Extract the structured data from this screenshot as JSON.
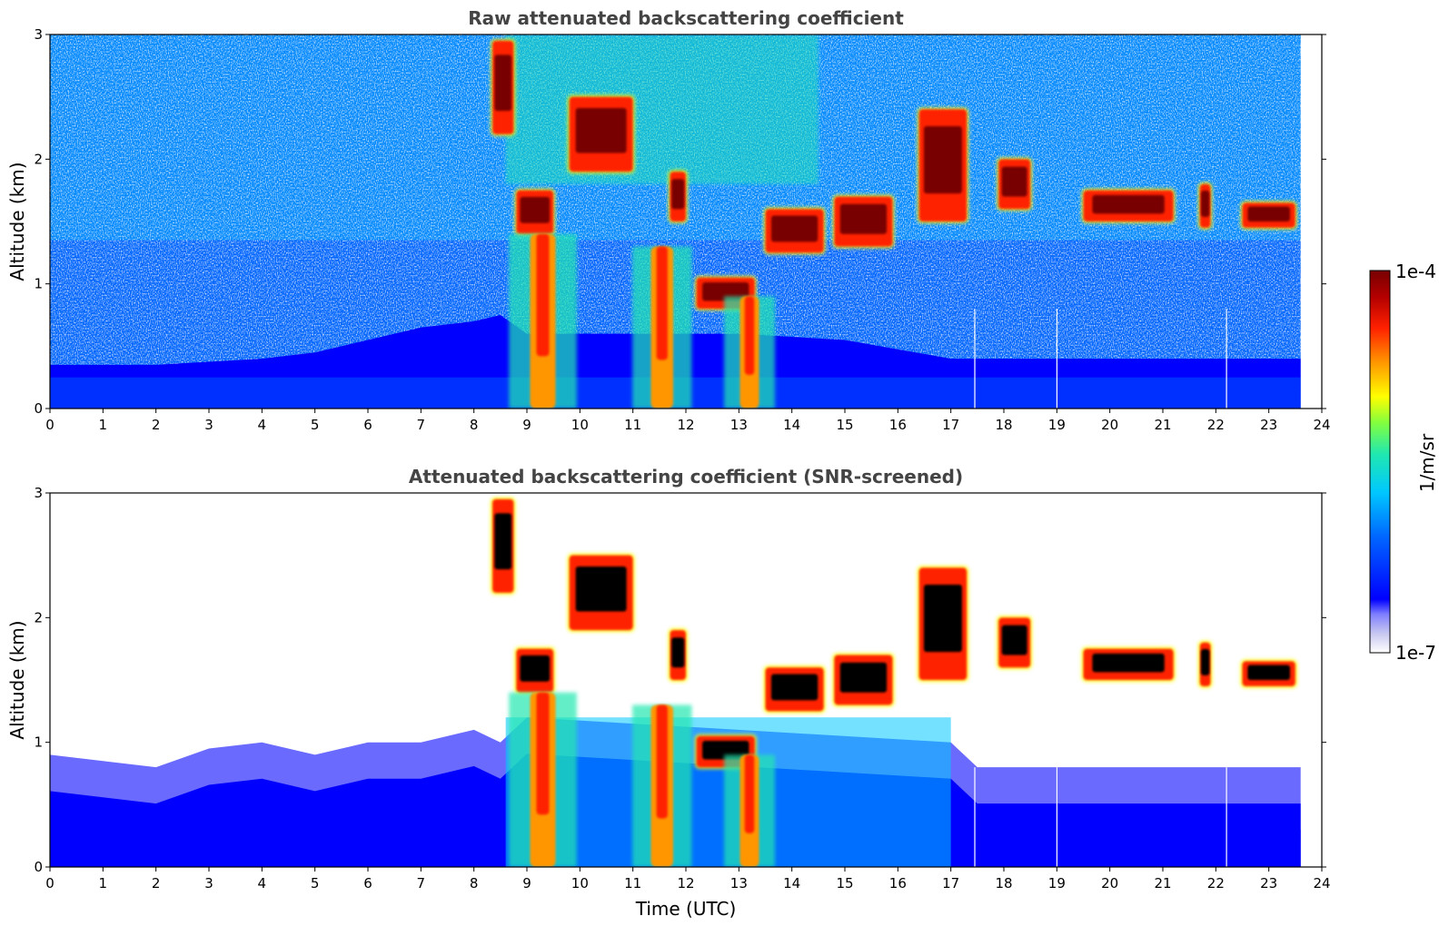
{
  "colors": {
    "colormap": [
      "#ffffff",
      "#dcdcf5",
      "#0000ff",
      "#0064ff",
      "#00c8ff",
      "#20e8b0",
      "#80ff40",
      "#ffff00",
      "#ff9600",
      "#ff2000",
      "#b40000",
      "#780000"
    ],
    "saturated": "#000000"
  },
  "chart_data": [
    {
      "type": "heatmap",
      "title": "Raw attenuated backscattering coefficient",
      "ylabel": "Altitude (km)",
      "xlabel": "",
      "xlim": [
        0,
        24
      ],
      "ylim": [
        0,
        3
      ],
      "x_ticks": [
        "0",
        "1",
        "2",
        "3",
        "4",
        "5",
        "6",
        "7",
        "8",
        "9",
        "10",
        "11",
        "12",
        "13",
        "14",
        "15",
        "16",
        "17",
        "18",
        "19",
        "20",
        "21",
        "22",
        "23",
        "24"
      ],
      "y_ticks": [
        "0",
        "1",
        "2",
        "3"
      ],
      "data_end_time": 23.6,
      "boundary_layer_top_km": [
        [
          0,
          0.35
        ],
        [
          2,
          0.35
        ],
        [
          4,
          0.4
        ],
        [
          5,
          0.45
        ],
        [
          6,
          0.55
        ],
        [
          7,
          0.65
        ],
        [
          8,
          0.7
        ],
        [
          8.5,
          0.75
        ],
        [
          9,
          0.6
        ],
        [
          13,
          0.6
        ],
        [
          15,
          0.55
        ],
        [
          17,
          0.4
        ],
        [
          19,
          0.4
        ],
        [
          21,
          0.4
        ],
        [
          23.6,
          0.4
        ]
      ],
      "features": [
        {
          "t0": 8.35,
          "t1": 8.75,
          "y0": 2.2,
          "y1": 2.95,
          "label": "descending cloud"
        },
        {
          "t0": 8.8,
          "t1": 9.5,
          "y0": 1.4,
          "y1": 1.75,
          "label": "cloud layer"
        },
        {
          "t0": 8.9,
          "t1": 9.7,
          "y0": 0.0,
          "y1": 1.4,
          "label": "precipitation"
        },
        {
          "t0": 9.8,
          "t1": 11.0,
          "y0": 1.9,
          "y1": 2.5,
          "label": "cloud layer"
        },
        {
          "t0": 11.2,
          "t1": 11.9,
          "y0": 0.0,
          "y1": 1.3,
          "label": "precipitation"
        },
        {
          "t0": 11.7,
          "t1": 12.0,
          "y0": 1.5,
          "y1": 1.9,
          "label": "cloud"
        },
        {
          "t0": 12.2,
          "t1": 13.3,
          "y0": 0.8,
          "y1": 1.05,
          "label": "cloud layer"
        },
        {
          "t0": 12.9,
          "t1": 13.5,
          "y0": 0.0,
          "y1": 0.9,
          "label": "precipitation"
        },
        {
          "t0": 13.5,
          "t1": 14.6,
          "y0": 1.25,
          "y1": 1.6,
          "label": "cloud layer"
        },
        {
          "t0": 14.8,
          "t1": 15.9,
          "y0": 1.3,
          "y1": 1.7,
          "label": "cloud layer"
        },
        {
          "t0": 16.4,
          "t1": 17.3,
          "y0": 1.5,
          "y1": 2.4,
          "label": "cloud"
        },
        {
          "t0": 17.9,
          "t1": 18.5,
          "y0": 1.6,
          "y1": 2.0,
          "label": "cloud"
        },
        {
          "t0": 19.5,
          "t1": 21.2,
          "y0": 1.5,
          "y1": 1.75,
          "label": "cloud layer"
        },
        {
          "t0": 21.7,
          "t1": 21.9,
          "y0": 1.45,
          "y1": 1.8,
          "label": "cloud"
        },
        {
          "t0": 22.5,
          "t1": 23.5,
          "y0": 1.45,
          "y1": 1.65,
          "label": "cloud layer"
        }
      ]
    },
    {
      "type": "heatmap",
      "title": "Attenuated backscattering coefficient (SNR-screened)",
      "ylabel": "Altitude (km)",
      "xlabel": "Time (UTC)",
      "xlim": [
        0,
        24
      ],
      "ylim": [
        0,
        3
      ],
      "x_ticks": [
        "0",
        "1",
        "2",
        "3",
        "4",
        "5",
        "6",
        "7",
        "8",
        "9",
        "10",
        "11",
        "12",
        "13",
        "14",
        "15",
        "16",
        "17",
        "18",
        "19",
        "20",
        "21",
        "22",
        "23",
        "24"
      ],
      "y_ticks": [
        "0",
        "1",
        "2",
        "3"
      ],
      "data_end_time": 23.6,
      "screened_top_km": [
        [
          0,
          0.9
        ],
        [
          1,
          0.85
        ],
        [
          2,
          0.8
        ],
        [
          3,
          0.95
        ],
        [
          4,
          1.0
        ],
        [
          5,
          0.9
        ],
        [
          6,
          1.0
        ],
        [
          7,
          1.0
        ],
        [
          8,
          1.1
        ],
        [
          8.5,
          1.0
        ],
        [
          9,
          1.2
        ],
        [
          17,
          1.0
        ],
        [
          17.5,
          0.8
        ],
        [
          20,
          0.8
        ],
        [
          23.6,
          0.8
        ]
      ]
    }
  ],
  "colorbar": {
    "label": "1/m/sr",
    "max_label": "1e-4",
    "min_label": "1e-7"
  }
}
